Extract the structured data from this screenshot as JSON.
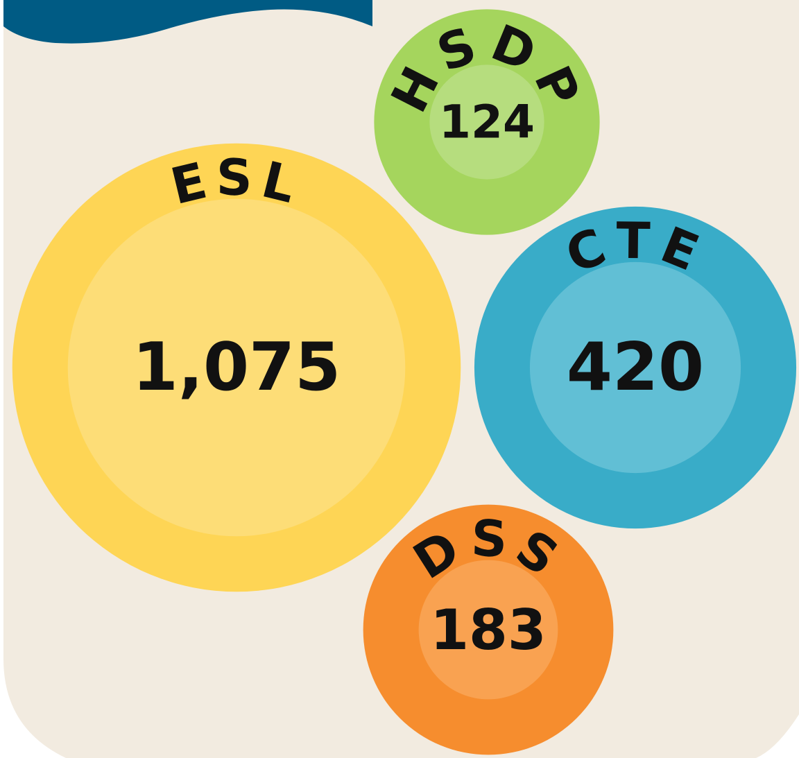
{
  "chart_data": {
    "type": "bubble",
    "categories": [
      "ESL",
      "HSDP",
      "CTE",
      "DSS"
    ],
    "values": [
      1075,
      124,
      420,
      183
    ],
    "value_labels": [
      "1,075",
      "124",
      "420",
      "183"
    ],
    "colors": [
      "#fed555",
      "#a5d55d",
      "#39acc8",
      "#f68d2e"
    ],
    "inner_colors": [
      "#fddd77",
      "#b6dd7e",
      "#61bfd5",
      "#f9a251"
    ]
  }
}
